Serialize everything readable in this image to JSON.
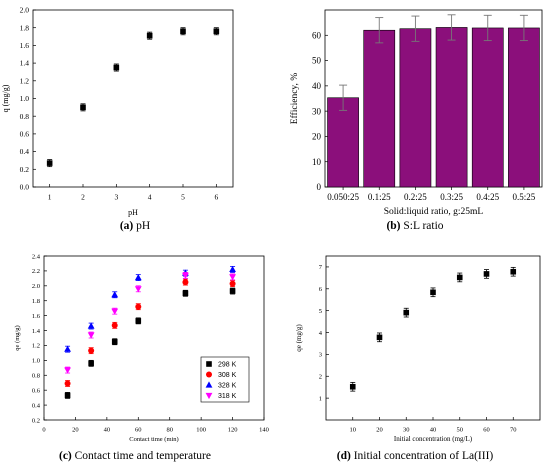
{
  "chart_data": [
    {
      "id": "a",
      "type": "scatter",
      "caption_letter": "(a)",
      "caption_text": " pH",
      "xlabel": "pH",
      "ylabel": "q (mg/g)",
      "xlim": [
        0.5,
        6.5
      ],
      "ylim": [
        0.0,
        2.0
      ],
      "xticks": [
        1,
        2,
        3,
        4,
        5,
        6
      ],
      "xtick_labels": [
        "1",
        "2",
        "3",
        "4",
        "5",
        "6"
      ],
      "yticks": [
        0,
        0.2,
        0.4,
        0.6,
        0.8,
        1.0,
        1.2,
        1.4,
        1.6,
        1.8,
        2.0
      ],
      "ytick_labels": [
        "0.0",
        "0.2",
        "0.4",
        "0.6",
        "0.8",
        "1.0",
        "1.2",
        "1.4",
        "1.6",
        "1.8",
        "2.0"
      ],
      "series": [
        {
          "marker": "square",
          "color": "#000000",
          "x": [
            1,
            2,
            3,
            4,
            5,
            6
          ],
          "y": [
            0.27,
            0.9,
            1.35,
            1.71,
            1.76,
            1.76
          ],
          "err": [
            0.04,
            0.04,
            0.04,
            0.04,
            0.04,
            0.04
          ]
        }
      ]
    },
    {
      "id": "b",
      "type": "bar",
      "caption_letter": "(b)",
      "caption_text": " S:L ratio",
      "xlabel": "Solid:liquid ratio, g:25mL",
      "ylabel": "Efficiency, %",
      "ylim": [
        0,
        70
      ],
      "yticks": [
        0,
        10,
        20,
        30,
        40,
        50,
        60
      ],
      "ytick_labels": [
        "0",
        "10",
        "20",
        "30",
        "40",
        "50",
        "60"
      ],
      "categories": [
        "0.050:25",
        "0.1:25",
        "0.2:25",
        "0.3:25",
        "0.4:25",
        "0.5:25"
      ],
      "values": [
        35.3,
        62.0,
        62.6,
        63.1,
        62.9,
        62.9
      ],
      "err": [
        5.0,
        5.0,
        5.0,
        5.0,
        5.0,
        5.0
      ],
      "bar_color": "#8b0f7b"
    },
    {
      "id": "c",
      "type": "scatter",
      "caption_letter": "(c)",
      "caption_text": " Contact time and temperature",
      "xlabel": "Contact time (min)",
      "ylabel": "qe (mg/g)",
      "xlim": [
        0,
        140
      ],
      "ylim": [
        0.2,
        2.4
      ],
      "xticks": [
        0,
        20,
        40,
        60,
        80,
        100,
        120,
        140
      ],
      "xtick_labels": [
        "0",
        "20",
        "40",
        "60",
        "80",
        "100",
        "120",
        "140"
      ],
      "yticks": [
        0.2,
        0.4,
        0.6,
        0.8,
        1.0,
        1.2,
        1.4,
        1.6,
        1.8,
        2.0,
        2.2,
        2.4
      ],
      "ytick_labels": [
        "0.2",
        "0.4",
        "0.6",
        "0.8",
        "1.0",
        "1.2",
        "1.4",
        "1.6",
        "1.8",
        "2.0",
        "2.2",
        "2.4"
      ],
      "legend_position": "bottom-right",
      "series": [
        {
          "name": "298 K",
          "marker": "square",
          "color": "#000000",
          "x": [
            15,
            30,
            45,
            60,
            90,
            120
          ],
          "y": [
            0.53,
            0.96,
            1.25,
            1.53,
            1.9,
            1.93
          ],
          "err": [
            0.04,
            0.04,
            0.04,
            0.04,
            0.04,
            0.04
          ]
        },
        {
          "name": "308 K",
          "marker": "circle",
          "color": "#ff0000",
          "x": [
            15,
            30,
            45,
            60,
            90,
            120
          ],
          "y": [
            0.69,
            1.13,
            1.47,
            1.72,
            2.05,
            2.03
          ],
          "err": [
            0.04,
            0.04,
            0.04,
            0.04,
            0.04,
            0.04
          ]
        },
        {
          "name": "328 K",
          "marker": "triangle-up",
          "color": "#0000ff",
          "x": [
            15,
            30,
            45,
            60,
            90,
            120
          ],
          "y": [
            1.15,
            1.46,
            1.88,
            2.11,
            2.17,
            2.22
          ],
          "err": [
            0.04,
            0.04,
            0.04,
            0.04,
            0.04,
            0.04
          ]
        },
        {
          "name": "318 K",
          "marker": "triangle-down",
          "color": "#ff00ff",
          "x": [
            15,
            30,
            45,
            60,
            90,
            120
          ],
          "y": [
            0.87,
            1.34,
            1.66,
            1.96,
            2.14,
            2.12
          ],
          "err": [
            0.04,
            0.04,
            0.04,
            0.04,
            0.04,
            0.04
          ]
        }
      ]
    },
    {
      "id": "d",
      "type": "scatter",
      "caption_letter": "(d)",
      "caption_text": " Initial concentration of La(III)",
      "xlabel": "Initial concentration (mg/L)",
      "ylabel": "qe (mg/g)",
      "xlim": [
        0,
        80
      ],
      "ylim": [
        0,
        7.5
      ],
      "xticks": [
        10,
        20,
        30,
        40,
        50,
        60,
        70
      ],
      "xtick_labels": [
        "10",
        "20",
        "30",
        "40",
        "50",
        "60",
        "70"
      ],
      "yticks": [
        1,
        2,
        3,
        4,
        5,
        6,
        7
      ],
      "ytick_labels": [
        "1",
        "2",
        "3",
        "4",
        "5",
        "6",
        "7"
      ],
      "series": [
        {
          "marker": "square",
          "color": "#000000",
          "x": [
            10,
            20,
            30,
            40,
            50,
            60,
            70
          ],
          "y": [
            1.52,
            3.78,
            4.91,
            5.84,
            6.52,
            6.68,
            6.78
          ],
          "err": [
            0.2,
            0.2,
            0.2,
            0.2,
            0.2,
            0.2,
            0.2
          ]
        }
      ]
    }
  ]
}
